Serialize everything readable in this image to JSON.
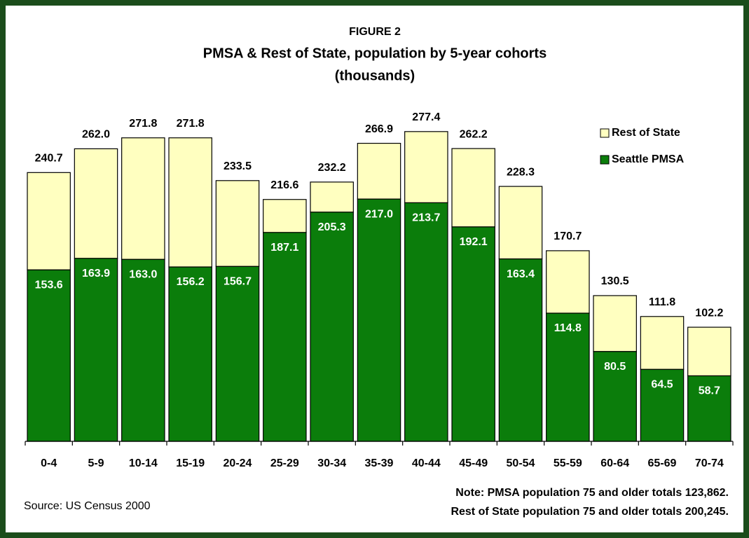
{
  "chart_data": {
    "type": "stacked_bar",
    "figure_label": "FIGURE 2",
    "title": "PMSA & Rest of State, population by 5-year cohorts",
    "subtitle": "(thousands)",
    "categories": [
      "0-4",
      "5-9",
      "10-14",
      "15-19",
      "20-24",
      "25-29",
      "30-34",
      "35-39",
      "40-44",
      "45-49",
      "50-54",
      "55-59",
      "60-64",
      "65-69",
      "70-74"
    ],
    "series": [
      {
        "name": "Seattle PMSA",
        "color": "#0b7d0b",
        "values": [
          153.6,
          163.9,
          163.0,
          156.2,
          156.7,
          187.1,
          205.3,
          217.0,
          213.7,
          192.1,
          163.4,
          114.8,
          80.5,
          64.5,
          58.7
        ],
        "value_labels": [
          "153.6",
          "163.9",
          "163.0",
          "156.2",
          "156.7",
          "187.1",
          "205.3",
          "217.0",
          "213.7",
          "192.1",
          "163.4",
          "114.8",
          "80.5",
          "64.5",
          "58.7"
        ]
      },
      {
        "name": "Rest of State",
        "color": "#ffffc0",
        "values": [
          87.1,
          98.1,
          108.8,
          115.6,
          76.8,
          29.5,
          26.9,
          49.9,
          63.7,
          70.1,
          64.9,
          55.9,
          50.0,
          47.3,
          43.5
        ]
      }
    ],
    "totals": [
      "240.7",
      "262.0",
      "271.8",
      "271.8",
      "233.5",
      "216.6",
      "232.2",
      "266.9",
      "277.4",
      "262.2",
      "228.3",
      "170.7",
      "130.5",
      "111.8",
      "102.2"
    ],
    "legend": "upper right",
    "notes": [
      "Note: PMSA population 75 and older totals 123,862.",
      "Rest of State population 75 and older totals 200,245."
    ],
    "source": "Source: US Census 2000"
  }
}
